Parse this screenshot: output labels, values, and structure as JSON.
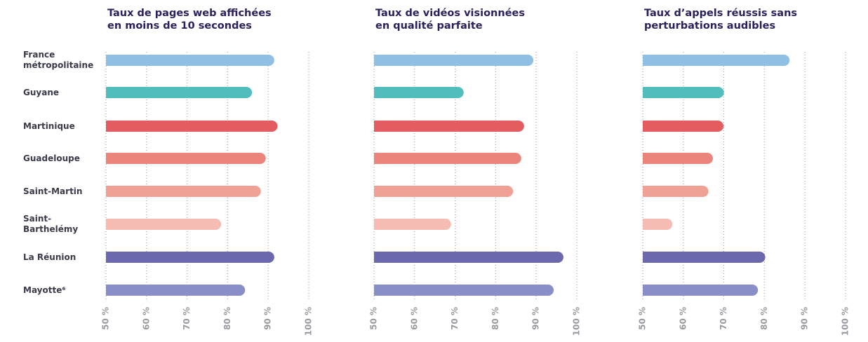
{
  "chart_data": [
    {
      "type": "bar",
      "orientation": "horizontal",
      "title": [
        "Taux de pages web affichées",
        "en moins de 10 secondes"
      ],
      "categories": [
        "France métropolitaine",
        "Guyane",
        "Martinique",
        "Guadeloupe",
        "Saint-Martin",
        "Saint-Barthelémy",
        "La Réunion",
        "Mayotte⁶"
      ],
      "values": [
        91.5,
        86,
        92.3,
        89.4,
        88.2,
        78.4,
        91.5,
        84.3
      ],
      "colors": [
        "#8fbfe3",
        "#52bdbd",
        "#e35c5f",
        "#eb857c",
        "#efa196",
        "#f5bcb3",
        "#6c68ae",
        "#8a8ec8"
      ],
      "xlim": [
        50,
        100
      ],
      "xticks": [
        {
          "value": 50,
          "label": "50 %"
        },
        {
          "value": 60,
          "label": "60 %"
        },
        {
          "value": 70,
          "label": "70 %"
        },
        {
          "value": 80,
          "label": "80 %"
        },
        {
          "value": 90,
          "label": "90 %"
        },
        {
          "value": 100,
          "label": "100 %"
        }
      ],
      "grid": true
    },
    {
      "type": "bar",
      "orientation": "horizontal",
      "title": [
        "Taux de vidéos visionnées",
        "en qualité parfaite"
      ],
      "values": [
        89.3,
        72.1,
        87,
        86.3,
        84.3,
        69,
        96.7,
        94.3
      ],
      "colors": [
        "#8fbfe3",
        "#52bdbd",
        "#e35c5f",
        "#eb857c",
        "#efa196",
        "#f5bcb3",
        "#6c68ae",
        "#8a8ec8"
      ],
      "xlim": [
        50,
        100
      ],
      "xticks": [
        {
          "value": 50,
          "label": "50 %"
        },
        {
          "value": 60,
          "label": "60 %"
        },
        {
          "value": 70,
          "label": "70 %"
        },
        {
          "value": 80,
          "label": "80 %"
        },
        {
          "value": 90,
          "label": "90 %"
        },
        {
          "value": 100,
          "label": "100 %"
        }
      ],
      "grid": true
    },
    {
      "type": "bar",
      "orientation": "horizontal",
      "title": [
        "Taux d’appels réussis sans",
        "perturbations audibles"
      ],
      "values": [
        86.2,
        70,
        69.9,
        67.3,
        66.2,
        57.3,
        80.2,
        78.4
      ],
      "colors": [
        "#8fbfe3",
        "#52bdbd",
        "#e35c5f",
        "#eb857c",
        "#efa196",
        "#f5bcb3",
        "#6c68ae",
        "#8a8ec8"
      ],
      "xlim": [
        50,
        100
      ],
      "xticks": [
        {
          "value": 50,
          "label": "50 %"
        },
        {
          "value": 60,
          "label": "60 %"
        },
        {
          "value": 70,
          "label": "70 %"
        },
        {
          "value": 80,
          "label": "80 %"
        },
        {
          "value": 90,
          "label": "90 %"
        },
        {
          "value": 100,
          "label": "100 %"
        }
      ],
      "grid": true
    }
  ]
}
